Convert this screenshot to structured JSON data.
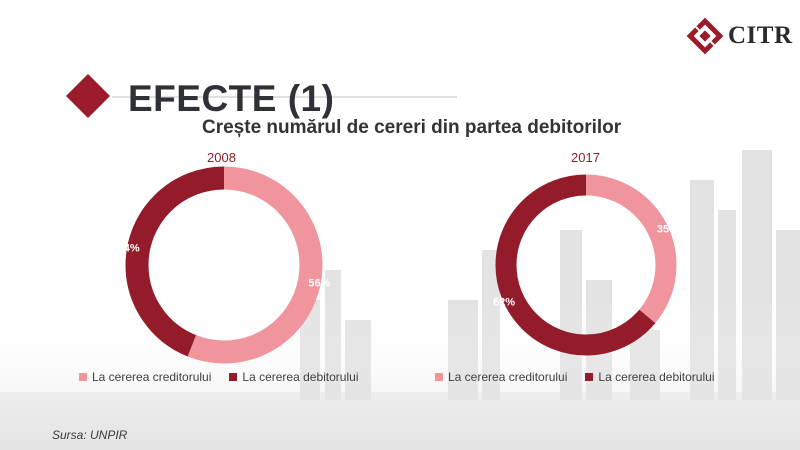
{
  "brand": {
    "name": "CITR",
    "accent": "#9b1b2a"
  },
  "page": {
    "title": "EFECTE (1)",
    "subtitle": "Crește numărul de cereri din partea debitorilor",
    "source": "Sursa: UNPIR"
  },
  "colors": {
    "creditor": "#f0959e",
    "debitor": "#941c2a"
  },
  "chart_data": [
    {
      "type": "pie",
      "title": "2008",
      "categories": [
        "La cererea creditorului",
        "La cererea debitorului"
      ],
      "values": [
        56,
        44
      ],
      "labels": [
        "56%",
        "44%"
      ]
    },
    {
      "type": "pie",
      "title": "2017",
      "categories": [
        "La cererea creditorului",
        "La cererea debitorului"
      ],
      "values": [
        35,
        62
      ],
      "labels": [
        "35%",
        "62%"
      ]
    }
  ]
}
